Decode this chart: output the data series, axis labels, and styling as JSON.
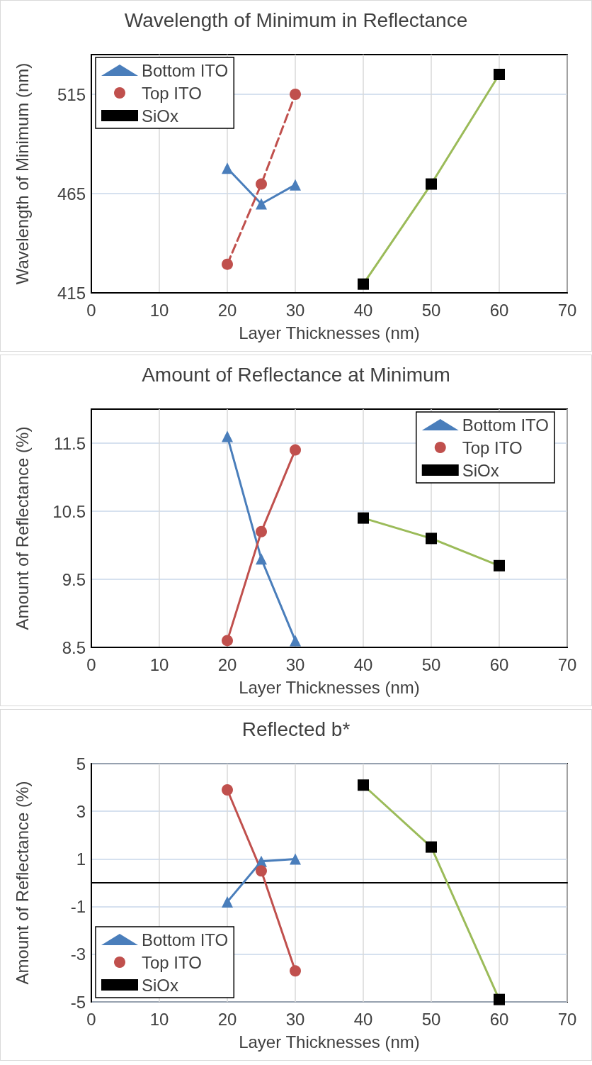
{
  "chart_data": [
    {
      "type": "line",
      "title": "Wavelength of Minimum in Reflectance",
      "xlabel": "Layer Thicknesses (nm)",
      "ylabel": "Wavelength of Minimum (nm)",
      "xlim": [
        0,
        70
      ],
      "xticks": [
        0,
        10,
        20,
        30,
        40,
        50,
        60,
        70
      ],
      "ylim": [
        415,
        535
      ],
      "yticks": [
        415,
        465,
        515
      ],
      "grid": true,
      "legend": "top left",
      "series": [
        {
          "name": "Bottom ITO",
          "color": "#4a7ebb",
          "marker": "triangle",
          "line_style": "solid",
          "x": [
            20,
            25,
            30
          ],
          "values": [
            477.8,
            459.8,
            469.4
          ]
        },
        {
          "name": "Top ITO",
          "color": "#c0504d",
          "marker": "circle",
          "line_style": "dashed",
          "x": [
            20,
            25,
            30
          ],
          "values": [
            429.4,
            469.8,
            515
          ]
        },
        {
          "name": "SiOx",
          "color": "#9bbb59",
          "colors": [
            "#000000",
            "#000000",
            "#000000"
          ],
          "marker": "square",
          "line_style": "solid",
          "x": [
            40,
            50,
            60
          ],
          "values": [
            419.4,
            469.8,
            525
          ]
        }
      ]
    },
    {
      "type": "line",
      "title": "Amount of Reflectance at Minimum",
      "xlabel": "Layer Thicknesses (nm)",
      "ylabel": "Amount of Reflectance (%)",
      "xlim": [
        0,
        70
      ],
      "xticks": [
        0,
        10,
        20,
        30,
        40,
        50,
        60,
        70
      ],
      "ylim": [
        8.5,
        12
      ],
      "yticks": [
        8.5,
        9.5,
        10.5,
        11.5
      ],
      "grid": true,
      "legend": "top right",
      "series": [
        {
          "name": "Bottom ITO",
          "color": "#4a7ebb",
          "marker": "triangle",
          "line_style": "solid",
          "x": [
            20,
            25,
            30
          ],
          "values": [
            11.6,
            9.8,
            8.6
          ]
        },
        {
          "name": "Top ITO",
          "color": "#c0504d",
          "marker": "circle",
          "line_style": "solid",
          "x": [
            20,
            25,
            30
          ],
          "values": [
            8.6,
            10.2,
            11.4
          ]
        },
        {
          "name": "SiOx",
          "color": "#9bbb59",
          "colors": [
            "#000000",
            "#000000",
            "#000000"
          ],
          "marker": "square",
          "line_style": "solid",
          "x": [
            40,
            50,
            60
          ],
          "values": [
            10.4,
            10.1,
            9.7
          ]
        }
      ]
    },
    {
      "type": "line",
      "title": "Reflected b*",
      "xlabel": "Layer Thicknesses (nm)",
      "ylabel": "Amount of Reflectance (%)",
      "xlim": [
        0,
        70
      ],
      "xticks": [
        0,
        10,
        20,
        30,
        40,
        50,
        60,
        70
      ],
      "ylim": [
        -5,
        5
      ],
      "yticks": [
        -5,
        -3,
        -1,
        1,
        3,
        5
      ],
      "grid": true,
      "legend": "bottom left",
      "series": [
        {
          "name": "Bottom ITO",
          "color": "#4a7ebb",
          "marker": "triangle",
          "line_style": "solid",
          "x": [
            20,
            25,
            30
          ],
          "values": [
            -0.8,
            0.9,
            1.0
          ]
        },
        {
          "name": "Top ITO",
          "color": "#c0504d",
          "marker": "circle",
          "line_style": "solid",
          "x": [
            20,
            25,
            30
          ],
          "values": [
            3.9,
            0.5,
            -3.7
          ]
        },
        {
          "name": "SiOx",
          "color": "#9bbb59",
          "colors": [
            "#000000",
            "#000000",
            "#000000"
          ],
          "marker": "square",
          "line_style": "solid",
          "x": [
            40,
            50,
            60
          ],
          "values": [
            4.1,
            1.5,
            -4.9
          ]
        }
      ]
    }
  ]
}
